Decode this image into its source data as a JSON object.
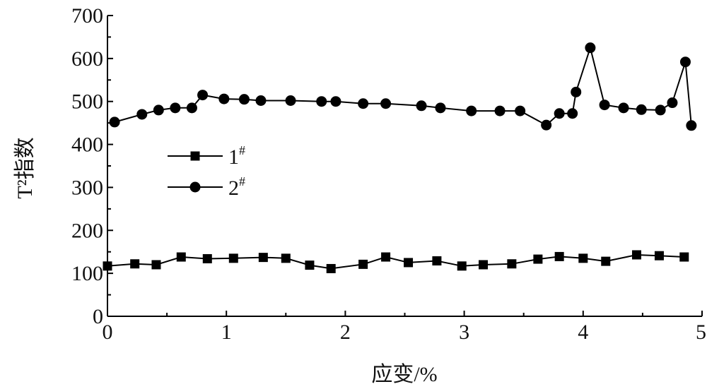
{
  "chart_data": {
    "type": "line",
    "xlabel": "应变/%",
    "ylabel": "T²指数",
    "xlim": [
      0,
      5
    ],
    "ylim": [
      0,
      700
    ],
    "x_ticks": [
      "0",
      "1",
      "2",
      "3",
      "4",
      "5"
    ],
    "y_ticks": [
      "0",
      "100",
      "200",
      "300",
      "400",
      "500",
      "600",
      "700"
    ],
    "grid": false,
    "legend_position": "left-middle",
    "series": [
      {
        "name": "1#",
        "label_main": "1",
        "label_sup": "#",
        "marker": "square",
        "color": "#000000",
        "x": [
          0,
          0.23,
          0.41,
          0.62,
          0.84,
          1.06,
          1.31,
          1.5,
          1.7,
          1.88,
          2.15,
          2.34,
          2.53,
          2.77,
          2.98,
          3.16,
          3.4,
          3.62,
          3.8,
          4.0,
          4.19,
          4.45,
          4.64,
          4.85
        ],
        "y": [
          117,
          122,
          120,
          138,
          134,
          135,
          137,
          135,
          119,
          111,
          121,
          138,
          125,
          129,
          117,
          120,
          122,
          133,
          139,
          135,
          128,
          143,
          141,
          138
        ]
      },
      {
        "name": "2#",
        "label_main": "2",
        "label_sup": "#",
        "marker": "circle",
        "color": "#000000",
        "x": [
          0.06,
          0.29,
          0.43,
          0.57,
          0.71,
          0.8,
          0.98,
          1.15,
          1.29,
          1.54,
          1.8,
          1.92,
          2.15,
          2.34,
          2.64,
          2.8,
          3.06,
          3.3,
          3.47,
          3.69,
          3.8,
          3.91,
          3.94,
          4.06,
          4.18,
          4.34,
          4.49,
          4.65,
          4.75,
          4.86,
          4.91
        ],
        "y": [
          452,
          470,
          480,
          485,
          485,
          515,
          506,
          505,
          502,
          502,
          500,
          500,
          495,
          495,
          490,
          485,
          478,
          478,
          478,
          445,
          472,
          472,
          522,
          625,
          492,
          485,
          481,
          480,
          497,
          592,
          444
        ]
      }
    ]
  }
}
